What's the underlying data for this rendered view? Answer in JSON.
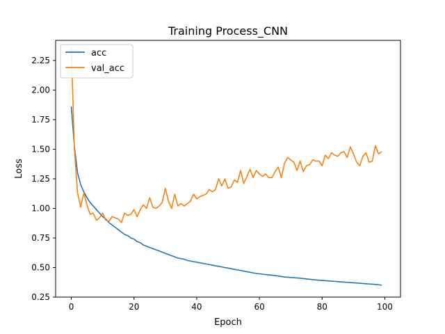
{
  "chart_data": {
    "type": "line",
    "title": "Training Process_CNN",
    "xlabel": "Epoch",
    "ylabel": "Loss",
    "xlim": [
      -5,
      105
    ],
    "ylim": [
      0.25,
      2.42
    ],
    "xticks": [
      0,
      20,
      40,
      60,
      80,
      100
    ],
    "yticks": [
      0.25,
      0.5,
      0.75,
      1.0,
      1.25,
      1.5,
      1.75,
      2.0,
      2.25
    ],
    "xtick_labels": [
      "0",
      "20",
      "40",
      "60",
      "80",
      "100"
    ],
    "ytick_labels": [
      "0.25",
      "0.50",
      "0.75",
      "1.00",
      "1.25",
      "1.50",
      "1.75",
      "2.00",
      "2.25"
    ],
    "grid": false,
    "legend_position": "upper-left",
    "series": [
      {
        "name": "acc",
        "color": "#1f77b4",
        "x": [
          0,
          1,
          2,
          3,
          4,
          5,
          6,
          7,
          8,
          9,
          10,
          11,
          12,
          13,
          14,
          15,
          16,
          17,
          18,
          19,
          20,
          21,
          22,
          23,
          24,
          25,
          26,
          27,
          28,
          29,
          30,
          31,
          32,
          33,
          34,
          35,
          36,
          37,
          38,
          39,
          40,
          41,
          42,
          43,
          44,
          45,
          46,
          47,
          48,
          49,
          50,
          51,
          52,
          53,
          54,
          55,
          56,
          57,
          58,
          59,
          60,
          61,
          62,
          63,
          64,
          65,
          66,
          67,
          68,
          69,
          70,
          71,
          72,
          73,
          74,
          75,
          76,
          77,
          78,
          79,
          80,
          81,
          82,
          83,
          84,
          85,
          86,
          87,
          88,
          89,
          90,
          91,
          92,
          93,
          94,
          95,
          96,
          97,
          98,
          99
        ],
        "values": [
          1.86,
          1.52,
          1.3,
          1.2,
          1.14,
          1.09,
          1.05,
          1.02,
          0.99,
          0.96,
          0.93,
          0.91,
          0.88,
          0.86,
          0.84,
          0.82,
          0.8,
          0.78,
          0.77,
          0.75,
          0.74,
          0.72,
          0.71,
          0.69,
          0.68,
          0.67,
          0.66,
          0.65,
          0.64,
          0.63,
          0.62,
          0.61,
          0.6,
          0.59,
          0.58,
          0.575,
          0.57,
          0.56,
          0.555,
          0.55,
          0.545,
          0.54,
          0.535,
          0.53,
          0.525,
          0.52,
          0.515,
          0.51,
          0.505,
          0.5,
          0.495,
          0.49,
          0.485,
          0.48,
          0.475,
          0.47,
          0.465,
          0.46,
          0.455,
          0.45,
          0.447,
          0.444,
          0.441,
          0.438,
          0.435,
          0.432,
          0.428,
          0.424,
          0.42,
          0.418,
          0.416,
          0.414,
          0.412,
          0.41,
          0.407,
          0.404,
          0.401,
          0.398,
          0.395,
          0.393,
          0.391,
          0.389,
          0.387,
          0.385,
          0.383,
          0.381,
          0.379,
          0.377,
          0.375,
          0.373,
          0.371,
          0.369,
          0.367,
          0.365,
          0.363,
          0.361,
          0.359,
          0.357,
          0.355,
          0.35
        ]
      },
      {
        "name": "val_acc",
        "color": "#ff7f0e",
        "x": [
          0,
          1,
          2,
          3,
          4,
          5,
          6,
          7,
          8,
          9,
          10,
          11,
          12,
          13,
          14,
          15,
          16,
          17,
          18,
          19,
          20,
          21,
          22,
          23,
          24,
          25,
          26,
          27,
          28,
          29,
          30,
          31,
          32,
          33,
          34,
          35,
          36,
          37,
          38,
          39,
          40,
          41,
          42,
          43,
          44,
          45,
          46,
          47,
          48,
          49,
          50,
          51,
          52,
          53,
          54,
          55,
          56,
          57,
          58,
          59,
          60,
          61,
          62,
          63,
          64,
          65,
          66,
          67,
          68,
          69,
          70,
          71,
          72,
          73,
          74,
          75,
          76,
          77,
          78,
          79,
          80,
          81,
          82,
          83,
          84,
          85,
          86,
          87,
          88,
          89,
          90,
          91,
          92,
          93,
          94,
          95,
          96,
          97,
          98,
          99
        ],
        "values": [
          2.36,
          1.5,
          1.13,
          1.01,
          1.13,
          1.03,
          0.95,
          0.96,
          0.9,
          0.92,
          0.96,
          0.9,
          0.89,
          0.93,
          0.92,
          0.91,
          0.88,
          0.96,
          0.94,
          0.95,
          0.99,
          0.93,
          0.99,
          1.03,
          1.0,
          1.09,
          1.01,
          1.0,
          1.02,
          1.05,
          1.17,
          1.06,
          1.0,
          1.12,
          1.02,
          1.04,
          1.02,
          1.04,
          1.06,
          1.12,
          1.08,
          1.1,
          1.11,
          1.12,
          1.16,
          1.14,
          1.16,
          1.25,
          1.19,
          1.25,
          1.17,
          1.18,
          1.24,
          1.22,
          1.32,
          1.21,
          1.27,
          1.33,
          1.26,
          1.32,
          1.29,
          1.27,
          1.29,
          1.26,
          1.26,
          1.31,
          1.35,
          1.26,
          1.38,
          1.43,
          1.41,
          1.39,
          1.32,
          1.4,
          1.31,
          1.36,
          1.37,
          1.41,
          1.4,
          1.4,
          1.36,
          1.45,
          1.42,
          1.47,
          1.45,
          1.44,
          1.47,
          1.48,
          1.43,
          1.52,
          1.46,
          1.39,
          1.36,
          1.44,
          1.47,
          1.39,
          1.4,
          1.53,
          1.46,
          1.48
        ]
      }
    ]
  }
}
